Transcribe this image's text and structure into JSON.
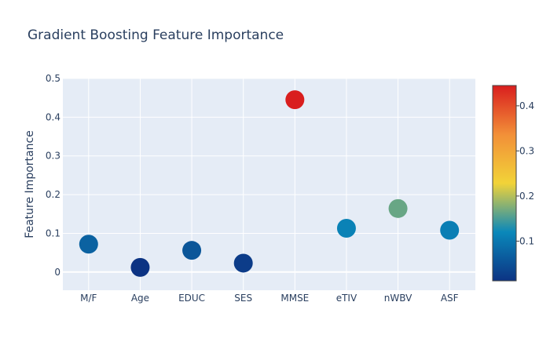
{
  "chart_data": {
    "type": "scatter",
    "title": "Gradient Boosting Feature Importance",
    "xlabel": "",
    "ylabel": "Feature Importance",
    "categories": [
      "M/F",
      "Age",
      "EDUC",
      "SES",
      "MMSE",
      "eTIV",
      "nWBV",
      "ASF"
    ],
    "values": [
      0.072,
      0.012,
      0.056,
      0.023,
      0.445,
      0.113,
      0.164,
      0.108
    ],
    "ylim": [
      -0.047,
      0.5
    ],
    "yticks": [
      0,
      0.1,
      0.2,
      0.3,
      0.4,
      0.5
    ],
    "ytick_labels": [
      "0",
      "0.1",
      "0.2",
      "0.3",
      "0.4",
      "0.5"
    ],
    "grid": true,
    "colorscale": {
      "name": "Portland",
      "range": [
        0.012,
        0.445
      ],
      "ticks": [
        0.1,
        0.2,
        0.3,
        0.4
      ],
      "tick_labels": [
        "0.1",
        "0.2",
        "0.3",
        "0.4"
      ],
      "stops": [
        "#0c3383",
        "#0a88ba",
        "#f2d338",
        "#f28f38",
        "#d91e1e"
      ]
    },
    "colors": {
      "plot_background": "#e5ecf6",
      "grid": "#ffffff",
      "text": "#2a3f5f"
    }
  }
}
